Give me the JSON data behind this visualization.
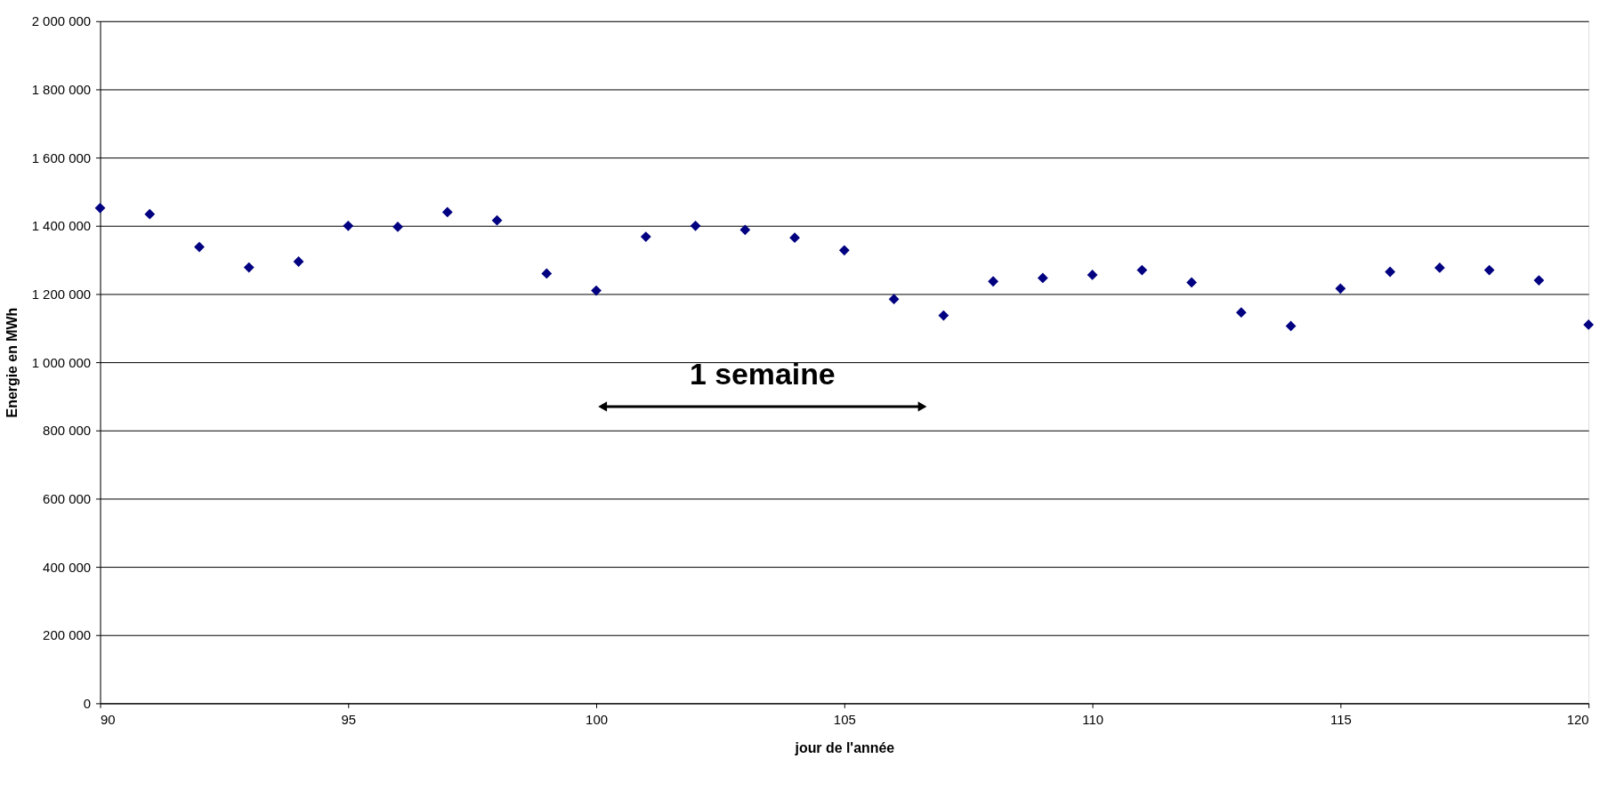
{
  "chart_data": {
    "type": "scatter",
    "xlabel": "jour de l'année",
    "ylabel": "Energie en MWh",
    "x": [
      90,
      91,
      92,
      93,
      94,
      95,
      96,
      97,
      98,
      99,
      100,
      101,
      102,
      103,
      104,
      105,
      106,
      107,
      108,
      109,
      110,
      111,
      112,
      113,
      114,
      115,
      116,
      117,
      118,
      119,
      120
    ],
    "series": [
      {
        "color": "#000080",
        "values": [
          1452000,
          1434000,
          1338000,
          1278000,
          1295000,
          1400000,
          1397000,
          1440000,
          1416000,
          1260000,
          1210000,
          1368000,
          1400000,
          1388000,
          1365000,
          1328000,
          1185000,
          1137000,
          1237000,
          1247000,
          1256000,
          1270000,
          1234000,
          1146000,
          1106000,
          1216000,
          1265000,
          1277000,
          1270000,
          1240000,
          1110000
        ]
      }
    ],
    "xlim": [
      90,
      120
    ],
    "xticks": [
      90,
      95,
      100,
      105,
      110,
      115,
      120
    ],
    "ylim": [
      0,
      2000000
    ],
    "yticks": [
      0,
      {
        "value": 200000,
        "label": "200 000"
      },
      {
        "value": 400000,
        "label": "400 000"
      },
      {
        "value": 600000,
        "label": "600 000"
      },
      {
        "value": 800000,
        "label": "800 000"
      },
      {
        "value": 1000000,
        "label": "1 000 000"
      },
      {
        "value": 1200000,
        "label": "1 200 000"
      },
      {
        "value": 1400000,
        "label": "1 400 000"
      },
      {
        "value": 1600000,
        "label": "1 600 000"
      },
      {
        "value": 1800000,
        "label": "1 800 000"
      },
      {
        "value": 2000000,
        "label": "2 000 000"
      }
    ],
    "annotations": [
      "1 semaine"
    ],
    "grid": "y",
    "marker": "diamond"
  }
}
